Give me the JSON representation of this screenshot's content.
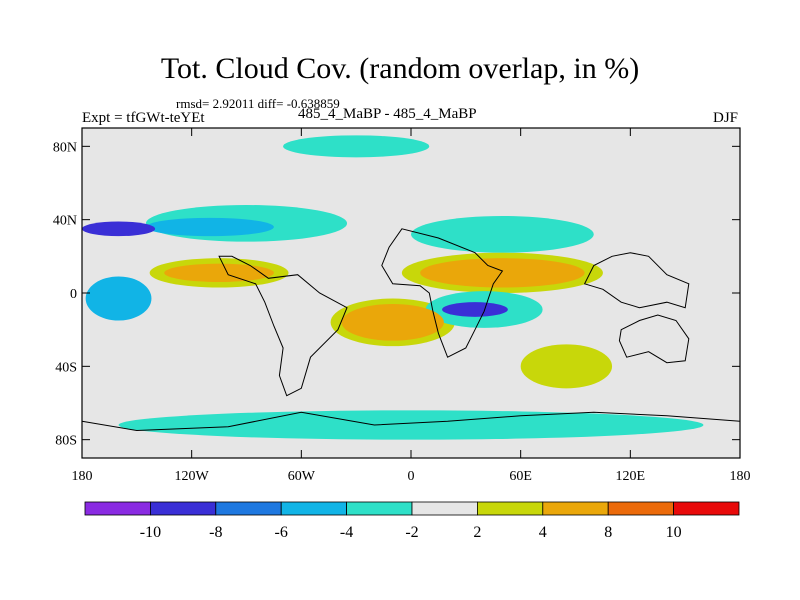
{
  "title": "Tot. Cloud Cov. (random overlap, in %)",
  "stats": "rmsd= 2.92011 diff= -0.638859",
  "experiment": "Expt = tfGWt-teYEt",
  "comparison": "485_4_MaBP - 485_4_MaBP",
  "season": "DJF",
  "map": {
    "projection": "cylindrical equidistant",
    "lon_range": [
      -180,
      180
    ],
    "lat_range": [
      -90,
      90
    ],
    "lat_ticks": [
      {
        "value": 80,
        "label": "80N"
      },
      {
        "value": 40,
        "label": "40N"
      },
      {
        "value": 0,
        "label": "0"
      },
      {
        "value": -40,
        "label": "40S"
      },
      {
        "value": -80,
        "label": "80S"
      }
    ],
    "lon_ticks": [
      {
        "value": -180,
        "label": "180"
      },
      {
        "value": -120,
        "label": "120W"
      },
      {
        "value": -60,
        "label": "60W"
      },
      {
        "value": 0,
        "label": "0"
      },
      {
        "value": 60,
        "label": "60E"
      },
      {
        "value": 120,
        "label": "120E"
      },
      {
        "value": 180,
        "label": "180"
      }
    ]
  },
  "colorbar": {
    "colors": [
      "#8a2be2",
      "#3a2fd6",
      "#1e78e0",
      "#11b4e6",
      "#2ee0c8",
      "#e6e6e6",
      "#c8d70a",
      "#eaa70a",
      "#eb6a0a",
      "#e80a0a"
    ],
    "boundary_labels": [
      "-10",
      "-8",
      "-6",
      "-4",
      "-2",
      "2",
      "4",
      "8",
      "10"
    ]
  },
  "features": [
    {
      "name": "north-atlantic-pacific-negative-band",
      "lon": -90,
      "lat": 38,
      "rlon": 55,
      "rlat": 10,
      "level": 4
    },
    {
      "name": "north-pacific-core",
      "lon": -110,
      "lat": 36,
      "rlon": 35,
      "rlat": 5,
      "level": 3
    },
    {
      "name": "west-pacific-min",
      "lon": -160,
      "lat": 35,
      "rlon": 20,
      "rlat": 4,
      "level": 1
    },
    {
      "name": "north-indian-negative",
      "lon": 50,
      "lat": 32,
      "rlon": 50,
      "rlat": 10,
      "level": 4
    },
    {
      "name": "tropical-pacific-positive",
      "lon": -105,
      "lat": 11,
      "rlon": 30,
      "rlat": 5,
      "level": 7
    },
    {
      "name": "tropical-pacific-neutral-plus",
      "lon": -105,
      "lat": 11,
      "rlon": 38,
      "rlat": 8,
      "level": 6
    },
    {
      "name": "tropical-indian-positive",
      "lon": 50,
      "lat": 11,
      "rlon": 45,
      "rlat": 8,
      "level": 7
    },
    {
      "name": "tropical-indian-plus",
      "lon": 50,
      "lat": 11,
      "rlon": 55,
      "rlat": 11,
      "level": 6
    },
    {
      "name": "indian-ocean-minimum",
      "lon": 40,
      "lat": -9,
      "rlon": 32,
      "rlat": 10,
      "level": 4
    },
    {
      "name": "indian-ocean-core",
      "lon": 35,
      "lat": -9,
      "rlon": 18,
      "rlat": 4,
      "level": 1
    },
    {
      "name": "south-atlantic-positive",
      "lon": -10,
      "lat": -16,
      "rlon": 28,
      "rlat": 10,
      "level": 7
    },
    {
      "name": "south-atlantic-plus",
      "lon": -10,
      "lat": -16,
      "rlon": 34,
      "rlat": 13,
      "level": 6
    },
    {
      "name": "west-pacific-equatorial-low",
      "lon": -160,
      "lat": -3,
      "rlon": 18,
      "rlat": 12,
      "level": 3
    },
    {
      "name": "southern-ocean-band",
      "lon": 0,
      "lat": -72,
      "rlon": 160,
      "rlat": 8,
      "level": 4
    },
    {
      "name": "australia-positive",
      "lon": 85,
      "lat": -40,
      "rlon": 25,
      "rlat": 12,
      "level": 6
    },
    {
      "name": "atlantic-north-patch",
      "lon": -30,
      "lat": 80,
      "rlon": 40,
      "rlat": 6,
      "level": 4
    }
  ]
}
